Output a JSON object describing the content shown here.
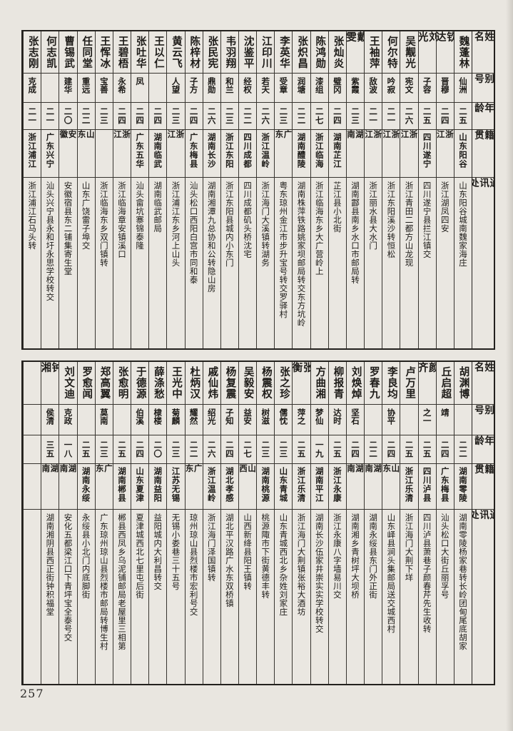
{
  "page": {
    "number": "257",
    "paper_color": "#e9e6e0",
    "ink_color": "#1d1b18"
  },
  "header_labels": {
    "name": "姓名",
    "alias": "别号",
    "age": "年龄",
    "native": "籍贯",
    "address": "通讯处"
  },
  "tables": [
    {
      "id": "table-top",
      "entries": [
        {
          "name": "魏蓬林",
          "alias": "仙洲",
          "age": "二五",
          "native": "山东阳谷",
          "address": "山东阳谷城南魏家海庄"
        },
        {
          "name": "钦达",
          "alias": "晋穆",
          "age": "二四",
          "native": "浙江",
          "address": "浙江湖凤四安"
        },
        {
          "name": "刘光",
          "alias": "子容",
          "age": "二五",
          "native": "四川遂宁",
          "address": "四川遂宁县拦江镇交"
        },
        {
          "name": "吴觏光",
          "alias": "宪文",
          "age": "二六",
          "native": "浙江",
          "address": "浙江青田二都方山龙现"
        },
        {
          "name": "何尔特",
          "alias": "吟寂",
          "age": "二一",
          "native": "浙江",
          "address": "浙江东阳溪沙转恒松"
        },
        {
          "name": "王袖萍",
          "alias": "敌波",
          "age": "二一",
          "native": "浙江",
          "address": "浙江丽水县大水门"
        },
        {
          "name": "戴雯",
          "alias": "紫霞",
          "age": "二三",
          "native": "湖南",
          "address": "湖南酃县南乡水口市邮局转"
        },
        {
          "name": "张灿炎",
          "alias": "璧冈",
          "age": "二四",
          "native": "湖南芷江",
          "address": "芷江县小北街"
        },
        {
          "name": "陈鸿勋",
          "alias": "漆组",
          "age": "二七",
          "native": "浙江临海",
          "address": "浙江临海东乡大广营岭上"
        },
        {
          "name": "张炽昌",
          "alias": "润塘",
          "age": "二二",
          "native": "湖南醴陵",
          "address": "湖南株萍铁路姚家坝邮局转交东方坑岭"
        },
        {
          "name": "李英华",
          "alias": "受章",
          "age": "二三",
          "native": "广东",
          "address": "粤东琼州金江市步升宝号转交罗驿村"
        },
        {
          "name": "江印川",
          "alias": "若天",
          "age": "二六",
          "native": "浙江温岭",
          "address": "浙江海门大溪镇转湖务"
        },
        {
          "name": "沈鉴平",
          "alias": "经权",
          "age": "二二",
          "native": "四川成都",
          "address": "四川成都矶头桥沈宅"
        },
        {
          "name": "韦羽翔",
          "alias": "和兰",
          "age": "二三",
          "native": "浙江东阳",
          "address": "浙江东阳县城内小东门"
        },
        {
          "name": "张民宪",
          "alias": "鼎勋",
          "age": "二六",
          "native": "湖南长沙",
          "address": "湖南湘潭九总协和公转隐山房"
        },
        {
          "name": "陈梓材",
          "alias": "子方",
          "age": "二四",
          "native": "广东梅县",
          "address": "汕头松口西阳白宫市同和泰"
        },
        {
          "name": "黄云飞",
          "alias": "人望",
          "age": "二三",
          "native": "浙江",
          "address": "浙江浦江东乡河上山头"
        },
        {
          "name": "王以仁",
          "alias": "",
          "age": "二四",
          "native": "湖南临武",
          "address": "湖南临武邮局"
        },
        {
          "name": "张吐华",
          "alias": "凤",
          "age": "二四",
          "native": "广东五华",
          "address": "汕头畲坑寨锦泰隆"
        },
        {
          "name": "王碧梧",
          "alias": "永希",
          "age": "二四",
          "native": "浙江",
          "address": "浙江临海章安镇溪口"
        },
        {
          "name": "王恽冰",
          "alias": "宝善",
          "age": "二三",
          "native": "",
          "address": "浙江临海东乡双门镇转"
        },
        {
          "name": "任同堂",
          "alias": "重远",
          "age": "二二",
          "native": "山东",
          "address": "山东广饶雷子埠交"
        },
        {
          "name": "曹锡武",
          "alias": "建华",
          "age": "二〇",
          "native": "安徽",
          "address": "安徽宿县东二铺集寄生堂"
        },
        {
          "name": "何志凯",
          "alias": "",
          "age": "二一",
          "native": "广东兴宁",
          "address": "汕头兴宁县永和圩永思学校转交"
        },
        {
          "name": "张志刚",
          "alias": "克成",
          "age": "二一",
          "native": "浙江浦江",
          "address": "浙江浦江石马头转"
        }
      ]
    },
    {
      "id": "table-bottom",
      "entries": [
        {
          "name": "胡渊博",
          "alias": "",
          "age": "二二",
          "native": "湖南零陵",
          "address": "湖南零陵杨家巷转长岭团甸尾底胡家"
        },
        {
          "name": "丘启超",
          "alias": "靖",
          "age": "二四",
          "native": "广东梅县",
          "address": "汕头松口大街丘丽孚号"
        },
        {
          "name": "颜齐",
          "alias": "之一",
          "age": "二五",
          "native": "四川泸县",
          "address": "四川泸县萧巷子颜春芹先生收转"
        },
        {
          "name": "卢万里",
          "alias": "",
          "age": "二五",
          "native": "浙江乐清",
          "address": "浙江海门大荆下垟"
        },
        {
          "name": "李良均",
          "alias": "协平",
          "age": "二四",
          "native": "山东",
          "address": "山东峄县涧头集邮局送交城西村"
        },
        {
          "name": "罗春九",
          "alias": "",
          "age": "二二",
          "native": "湖南",
          "address": "湖南永绥县东门外正街"
        },
        {
          "name": "刘焕焯",
          "alias": "坚石",
          "age": "二四",
          "native": "湖南",
          "address": "湖南湘乡青树坪大坝桥"
        },
        {
          "name": "柳报青",
          "alias": "达时",
          "age": "二五",
          "native": "浙江永康",
          "address": "浙江永康八字墙易川交"
        },
        {
          "name": "方曲湘",
          "alias": "梦仙",
          "age": "一九",
          "native": "湖南平江",
          "address": "湖南长沙伍家井崇实实学校转交"
        },
        {
          "name": "张衡",
          "alias": "萍之",
          "age": "二五",
          "native": "浙江乐清",
          "address": "浙江海门大荆镇张裕大酒坊"
        },
        {
          "name": "张之珍",
          "alias": "儒忱",
          "age": "二三",
          "native": "山东青城",
          "address": "山东青城西北乡杂姓刘家庄"
        },
        {
          "name": "杨震权",
          "alias": "树滋",
          "age": "二三",
          "native": "湖南桃源",
          "address": "桃源陬市下街黄德丰转"
        },
        {
          "name": "吴毅安",
          "alias": "益安",
          "age": "二七",
          "native": "山西",
          "address": "山西新绛县阳王镇转"
        },
        {
          "name": "杨复震",
          "alias": "子知",
          "age": "二四",
          "native": "湖北孝感",
          "address": "湖北平汉路广水东双桥镇"
        },
        {
          "name": "戚仙炜",
          "alias": "绍光",
          "age": "二六",
          "native": "浙江温岭",
          "address": "浙江海门泽国镇转"
        },
        {
          "name": "杜炳汉",
          "alias": "耀然",
          "age": "二二",
          "native": "广东",
          "address": "琼州琼山县烈楼市宏利号交"
        },
        {
          "name": "王光中",
          "alias": "菊麟",
          "age": "二三",
          "native": "江苏无锡",
          "address": "无锡小娄巷三十五号"
        },
        {
          "name": "薛涤愁",
          "alias": "棣楼",
          "age": "二〇",
          "native": "湖南益阳",
          "address": "益阳城内大利昌转交"
        },
        {
          "name": "于德源",
          "alias": "伯溪",
          "age": "二四",
          "native": "山东夏津",
          "address": "夏津城西北七里屯后街"
        },
        {
          "name": "张愈明",
          "alias": "",
          "age": "二五",
          "native": "湖南郴县",
          "address": "郴县西凤乡乌泥铺邮局老屋里三相第"
        },
        {
          "name": "郑高翼",
          "alias": "莫南",
          "age": "二三",
          "native": "广东",
          "address": "广东琼州琼山县烈楼市邮局转博生村"
        },
        {
          "name": "罗愈闻",
          "alias": "",
          "age": "二五",
          "native": "湖南永绥",
          "address": "永绥县小北门内底脚街"
        },
        {
          "name": "刘文迪",
          "alias": "克政",
          "age": "一八",
          "native": "湖南",
          "address": "安化五都梁江口下青坪宝全泰号交"
        },
        {
          "name": "钟湘",
          "alias": "侯清",
          "age": "三五",
          "native": "湖南",
          "address": "湖南湘阴县西正街钟积福堂"
        },
        {
          "name": "",
          "alias": "",
          "age": "",
          "native": "",
          "address": ""
        }
      ]
    }
  ]
}
